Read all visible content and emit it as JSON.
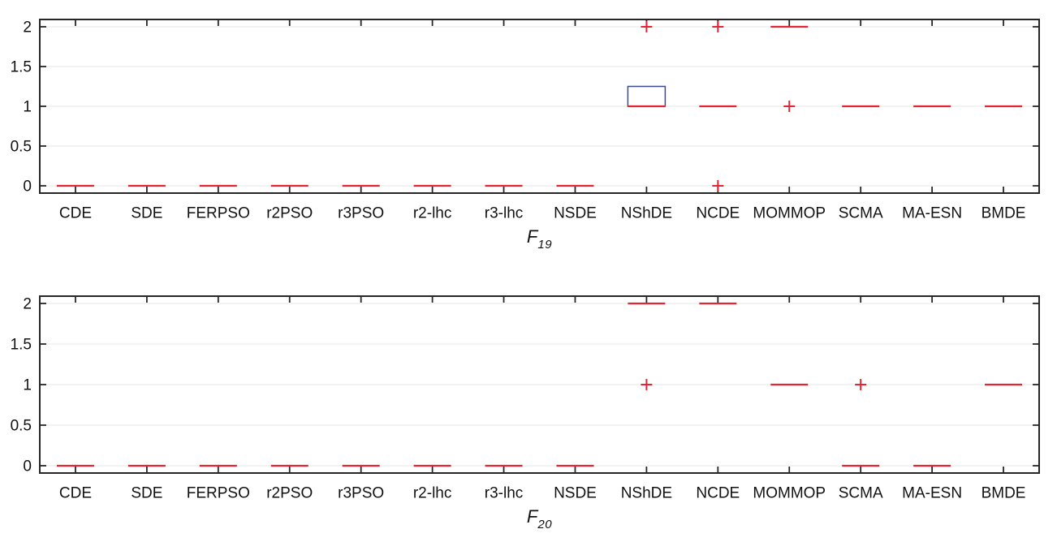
{
  "figure": {
    "captions": [
      {
        "base": "F",
        "sub": "19"
      },
      {
        "base": "F",
        "sub": "20"
      }
    ]
  },
  "colors": {
    "median_red": "#e32636",
    "box_blue": "#3a4a94",
    "axis": "#262626",
    "grid": "#e7e7e7",
    "text": "#111111"
  },
  "chart_data": [
    {
      "type": "boxplot",
      "title": "",
      "xlabel": "F19",
      "ylabel": "",
      "grid": "horizontal",
      "legend": "none",
      "ylim": [
        -0.09,
        2.09
      ],
      "yticks": [
        0,
        0.5,
        1,
        1.5,
        2
      ],
      "categories": [
        "CDE",
        "SDE",
        "FERPSO",
        "r2PSO",
        "r3PSO",
        "r2-lhc",
        "r3-lhc",
        "NSDE",
        "NShDE",
        "NCDE",
        "MOMMOP",
        "SCMA",
        "MA-ESN",
        "BMDE"
      ],
      "boxes": [
        {
          "category": "CDE",
          "median": 0,
          "q1": 0,
          "q3": 0,
          "outliers": []
        },
        {
          "category": "SDE",
          "median": 0,
          "q1": 0,
          "q3": 0,
          "outliers": []
        },
        {
          "category": "FERPSO",
          "median": 0,
          "q1": 0,
          "q3": 0,
          "outliers": []
        },
        {
          "category": "r2PSO",
          "median": 0,
          "q1": 0,
          "q3": 0,
          "outliers": []
        },
        {
          "category": "r3PSO",
          "median": 0,
          "q1": 0,
          "q3": 0,
          "outliers": []
        },
        {
          "category": "r2-lhc",
          "median": 0,
          "q1": 0,
          "q3": 0,
          "outliers": []
        },
        {
          "category": "r3-lhc",
          "median": 0,
          "q1": 0,
          "q3": 0,
          "outliers": []
        },
        {
          "category": "NSDE",
          "median": 0,
          "q1": 0,
          "q3": 0,
          "outliers": []
        },
        {
          "category": "NShDE",
          "median": 1,
          "q1": 1,
          "q3": 1.25,
          "outliers": [
            2
          ]
        },
        {
          "category": "NCDE",
          "median": 1,
          "q1": 1,
          "q3": 1,
          "outliers": [
            2,
            0
          ]
        },
        {
          "category": "MOMMOP",
          "median": 2,
          "q1": 2,
          "q3": 2,
          "outliers": [
            1
          ]
        },
        {
          "category": "SCMA",
          "median": 1,
          "q1": 1,
          "q3": 1,
          "outliers": []
        },
        {
          "category": "MA-ESN",
          "median": 1,
          "q1": 1,
          "q3": 1,
          "outliers": []
        },
        {
          "category": "BMDE",
          "median": 1,
          "q1": 1,
          "q3": 1,
          "outliers": []
        }
      ]
    },
    {
      "type": "boxplot",
      "title": "",
      "xlabel": "F20",
      "ylabel": "",
      "grid": "horizontal",
      "legend": "none",
      "ylim": [
        -0.09,
        2.09
      ],
      "yticks": [
        0,
        0.5,
        1,
        1.5,
        2
      ],
      "categories": [
        "CDE",
        "SDE",
        "FERPSO",
        "r2PSO",
        "r3PSO",
        "r2-lhc",
        "r3-lhc",
        "NSDE",
        "NShDE",
        "NCDE",
        "MOMMOP",
        "SCMA",
        "MA-ESN",
        "BMDE"
      ],
      "boxes": [
        {
          "category": "CDE",
          "median": 0,
          "q1": 0,
          "q3": 0,
          "outliers": []
        },
        {
          "category": "SDE",
          "median": 0,
          "q1": 0,
          "q3": 0,
          "outliers": []
        },
        {
          "category": "FERPSO",
          "median": 0,
          "q1": 0,
          "q3": 0,
          "outliers": []
        },
        {
          "category": "r2PSO",
          "median": 0,
          "q1": 0,
          "q3": 0,
          "outliers": []
        },
        {
          "category": "r3PSO",
          "median": 0,
          "q1": 0,
          "q3": 0,
          "outliers": []
        },
        {
          "category": "r2-lhc",
          "median": 0,
          "q1": 0,
          "q3": 0,
          "outliers": []
        },
        {
          "category": "r3-lhc",
          "median": 0,
          "q1": 0,
          "q3": 0,
          "outliers": []
        },
        {
          "category": "NSDE",
          "median": 0,
          "q1": 0,
          "q3": 0,
          "outliers": []
        },
        {
          "category": "NShDE",
          "median": 2,
          "q1": 2,
          "q3": 2,
          "outliers": [
            1
          ]
        },
        {
          "category": "NCDE",
          "median": 2,
          "q1": 2,
          "q3": 2,
          "outliers": []
        },
        {
          "category": "MOMMOP",
          "median": 1,
          "q1": 1,
          "q3": 1,
          "outliers": []
        },
        {
          "category": "SCMA",
          "median": 0,
          "q1": 0,
          "q3": 0,
          "outliers": [
            1
          ]
        },
        {
          "category": "MA-ESN",
          "median": 0,
          "q1": 0,
          "q3": 0,
          "outliers": []
        },
        {
          "category": "BMDE",
          "median": 1,
          "q1": 1,
          "q3": 1,
          "outliers": []
        }
      ]
    }
  ]
}
